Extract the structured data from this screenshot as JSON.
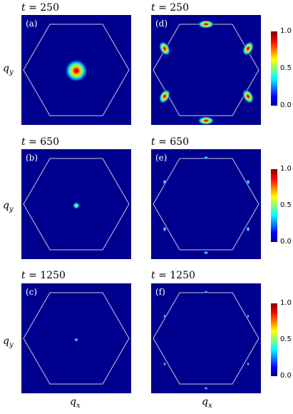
{
  "colors": {
    "field": "#00008f",
    "hexagon": "#c8c8d8"
  },
  "panels": [
    {
      "id": "a",
      "label": "(a)",
      "time": "250"
    },
    {
      "id": "b",
      "label": "(b)",
      "time": "650"
    },
    {
      "id": "c",
      "label": "(c)",
      "time": "1250"
    },
    {
      "id": "d",
      "label": "(d)",
      "time": "250"
    },
    {
      "id": "e",
      "label": "(e)",
      "time": "650"
    },
    {
      "id": "f",
      "label": "(f)",
      "time": "1250"
    }
  ],
  "time_symbol": "t =",
  "axes": {
    "qy": "q",
    "qy_sub": "y",
    "qx": "q",
    "qx_sub": "x"
  },
  "colorbar": {
    "ticks": [
      "1.0",
      "0.5",
      "0.0"
    ]
  }
}
